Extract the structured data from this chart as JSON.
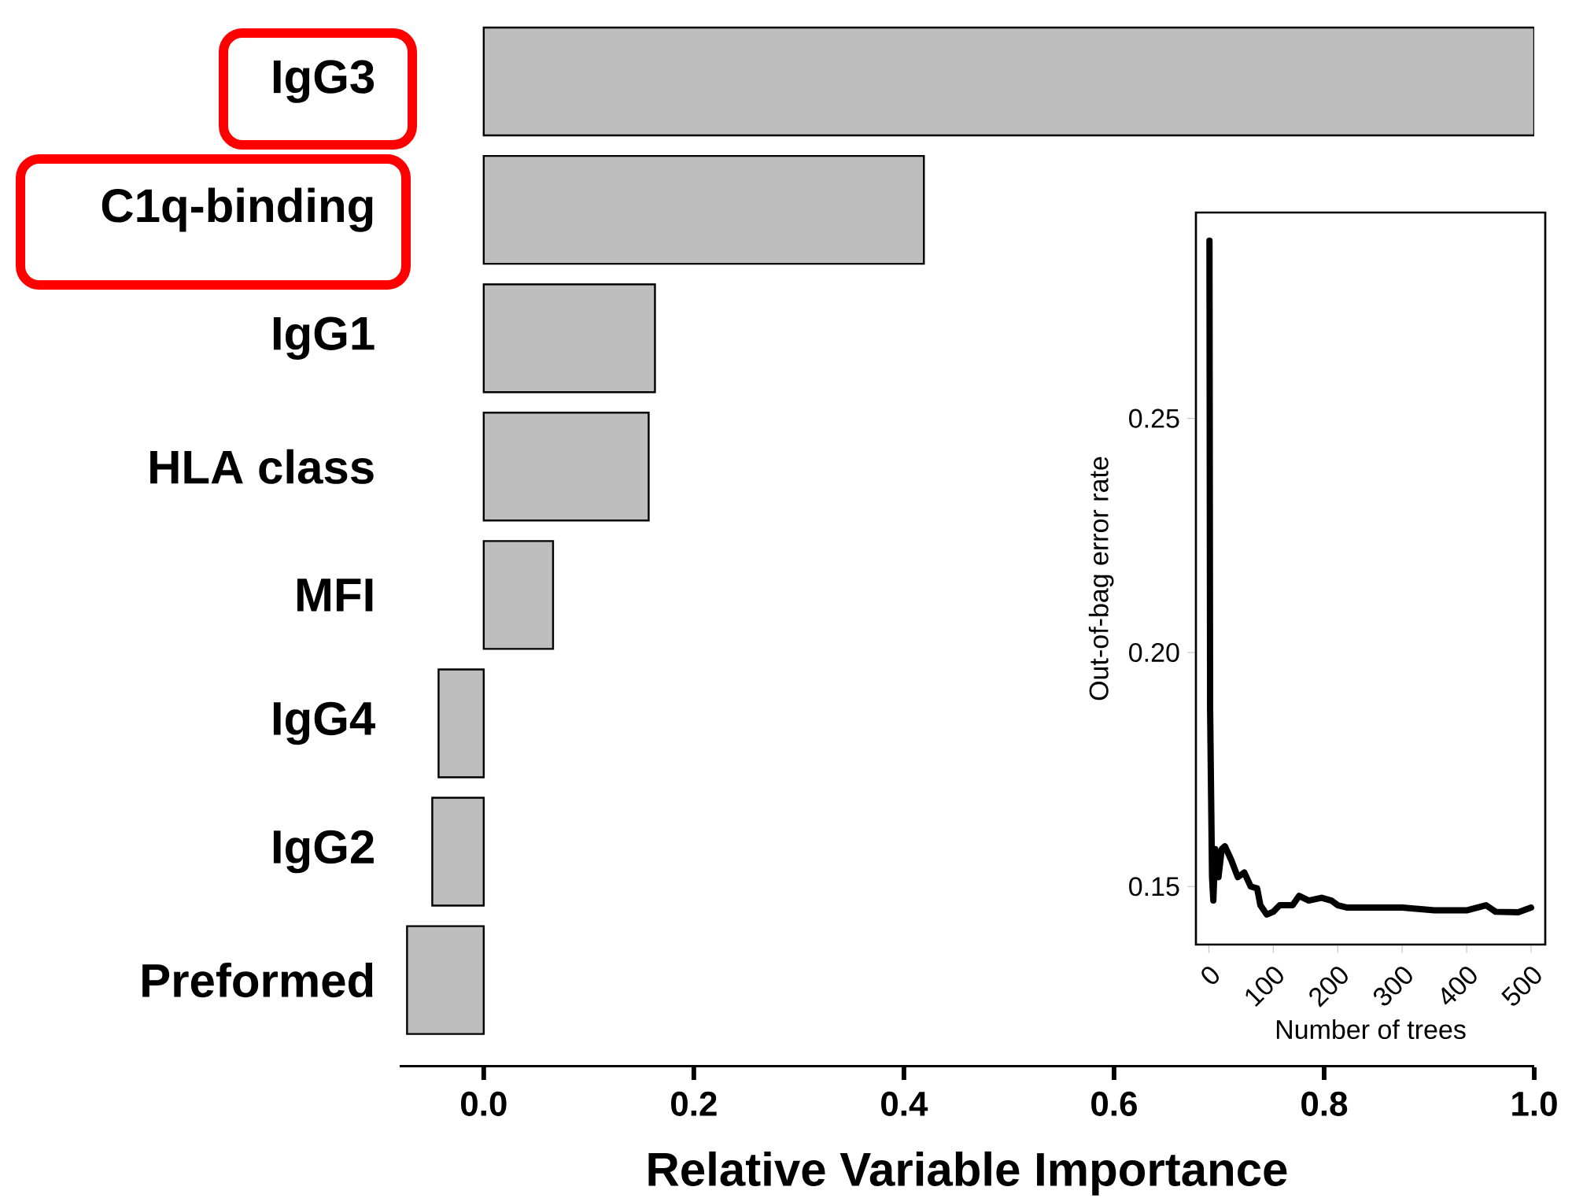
{
  "chart_data": [
    {
      "type": "bar",
      "orientation": "horizontal",
      "xlabel": "Relative Variable Importance",
      "categories": [
        "IgG3",
        "C1q-binding",
        "IgG1",
        "HLA class",
        "MFI",
        "IgG4",
        "IgG2",
        "Preformed"
      ],
      "values": [
        1.0,
        0.419,
        0.163,
        0.157,
        0.066,
        -0.043,
        -0.049,
        -0.073
      ],
      "color": "#bebebe",
      "xlim": [
        -0.08,
        1.0
      ],
      "xticks": [
        {
          "value": 0,
          "label": "0.0"
        },
        0.2,
        0.4,
        0.6,
        0.8,
        {
          "value": 1,
          "label": "1.0"
        }
      ]
    },
    {
      "type": "line",
      "xlabel": "Number of trees",
      "ylabel": "Out-of-bag error rate",
      "xlim": [
        -20,
        522
      ],
      "ylim": [
        0.1376,
        0.294
      ],
      "xticks": [
        0,
        100,
        200,
        300,
        400,
        500
      ],
      "yticks": [
        0.15,
        {
          "value": 0.2,
          "label": "0.20"
        },
        0.25
      ],
      "series": [
        {
          "color": "#000000",
          "x": [
            1,
            2,
            5,
            7,
            10,
            15,
            20,
            25,
            35,
            45,
            55,
            65,
            75,
            80,
            90,
            100,
            110,
            130,
            140,
            155,
            175,
            190,
            200,
            215,
            250,
            300,
            350,
            400,
            430,
            445,
            480,
            500
          ],
          "values": [
            0.288,
            0.188,
            0.152,
            0.147,
            0.158,
            0.152,
            0.158,
            0.1586,
            0.1556,
            0.152,
            0.153,
            0.15,
            0.1496,
            0.146,
            0.144,
            0.1446,
            0.146,
            0.146,
            0.148,
            0.147,
            0.1476,
            0.147,
            0.146,
            0.1455,
            0.1455,
            0.1455,
            0.1449,
            0.1449,
            0.146,
            0.1446,
            0.1445,
            0.1455
          ]
        }
      ]
    }
  ]
}
